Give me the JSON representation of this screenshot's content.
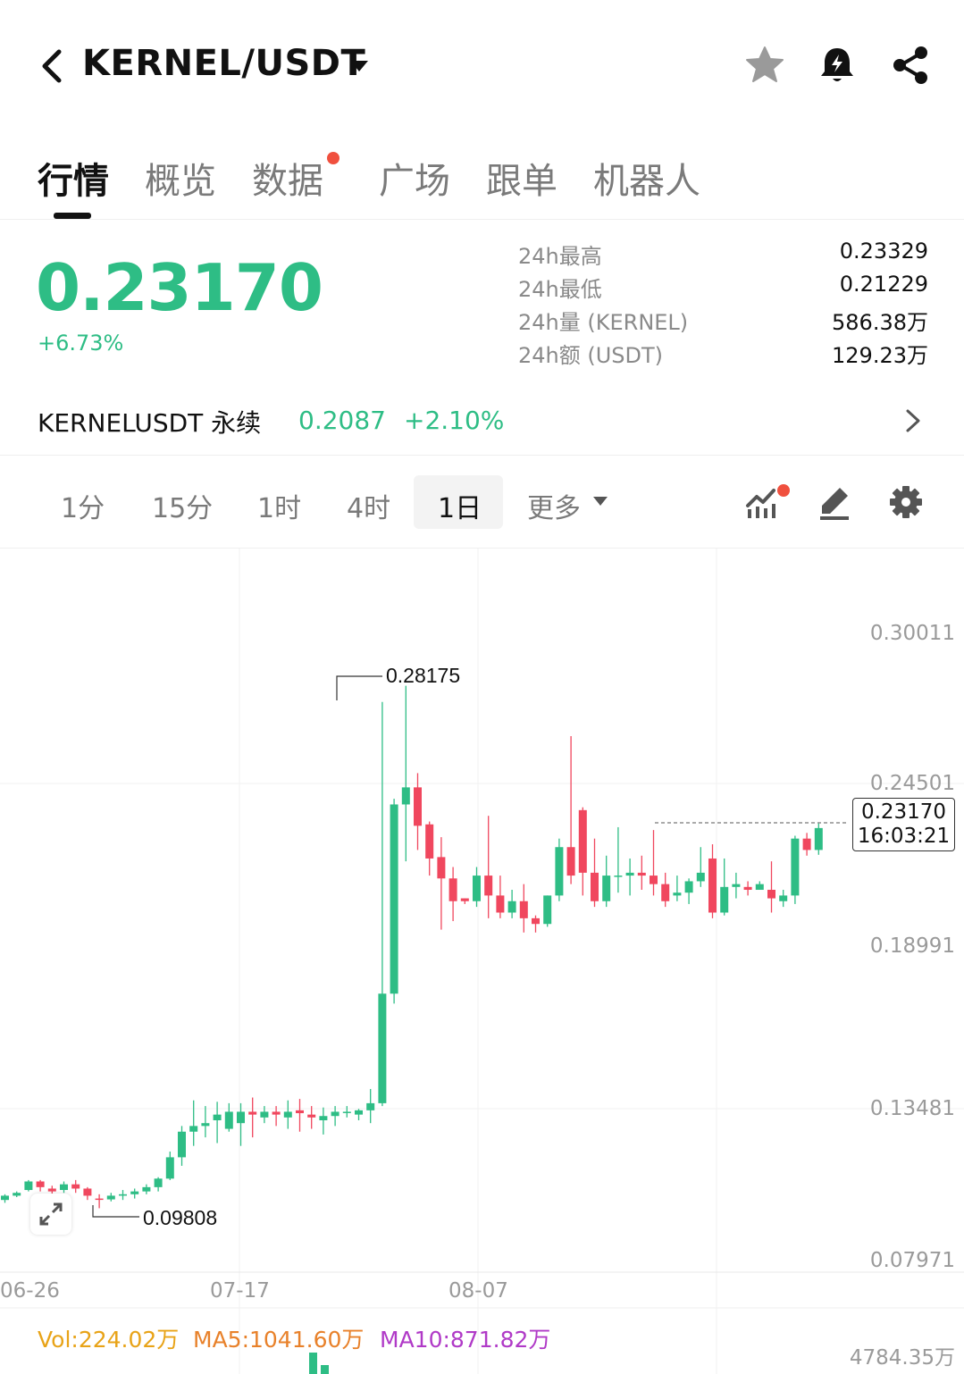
{
  "header": {
    "title": "KERNEL/USDT",
    "icons": [
      "back-arrow-icon",
      "caret-down-icon",
      "star-icon",
      "alert-bell-icon",
      "share-icon"
    ]
  },
  "tabs": [
    {
      "label": "行情",
      "active": true
    },
    {
      "label": "概览",
      "active": false
    },
    {
      "label": "数据",
      "active": false,
      "dot": true
    },
    {
      "label": "广场",
      "active": false
    },
    {
      "label": "跟单",
      "active": false
    },
    {
      "label": "机器人",
      "active": false
    }
  ],
  "ticker": {
    "last_price": "0.23170",
    "change_pct": "+6.73%",
    "stats": [
      {
        "label": "24h最高",
        "value": "0.23329"
      },
      {
        "label": "24h最低",
        "value": "0.21229"
      },
      {
        "label": "24h量 (KERNEL)",
        "value": "586.38万"
      },
      {
        "label": "24h额 (USDT)",
        "value": "129.23万"
      }
    ]
  },
  "perpetual": {
    "name": "KERNELUSDT 永续",
    "price": "0.2087",
    "change": "+2.10%"
  },
  "intervals": {
    "items": [
      "1分",
      "15分",
      "1时",
      "4时",
      "1日",
      "更多"
    ],
    "active": "1日",
    "tools": [
      "indicators-icon",
      "draw-icon",
      "settings-icon"
    ]
  },
  "colors": {
    "up": "#2ebd85",
    "down": "#f0475e",
    "accent_dot": "#f0503e"
  },
  "chart_data": {
    "type": "candlestick",
    "interval": "1日",
    "y_ticks": [
      "0.30011",
      "0.24501",
      "0.18991",
      "0.13481",
      "0.07971"
    ],
    "x_ticks": [
      "06-26",
      "07-17",
      "08-07"
    ],
    "max_label": "0.28175",
    "min_label": "0.09808",
    "current_price": "0.23170",
    "current_time": "16:03:21",
    "volume": {
      "vol": "Vol:224.02万",
      "ma5": "MA5:1041.60万",
      "ma10": "MA10:871.82万",
      "max": "4784.35万"
    },
    "candles": [
      [
        0.101,
        0.1025,
        0.1,
        0.103
      ],
      [
        0.1025,
        0.1035,
        0.102,
        0.104
      ],
      [
        0.1045,
        0.1075,
        0.104,
        0.108
      ],
      [
        0.1075,
        0.1055,
        0.104,
        0.108
      ],
      [
        0.105,
        0.104,
        0.103,
        0.106
      ],
      [
        0.1045,
        0.1065,
        0.1035,
        0.1075
      ],
      [
        0.1065,
        0.105,
        0.1035,
        0.108
      ],
      [
        0.105,
        0.1025,
        0.101,
        0.1055
      ],
      [
        0.1015,
        0.1012,
        0.0981,
        0.103
      ],
      [
        0.1012,
        0.1025,
        0.1005,
        0.1035
      ],
      [
        0.1025,
        0.103,
        0.101,
        0.1045
      ],
      [
        0.103,
        0.104,
        0.1015,
        0.105
      ],
      [
        0.104,
        0.1055,
        0.103,
        0.1065
      ],
      [
        0.1055,
        0.1085,
        0.104,
        0.109
      ],
      [
        0.1085,
        0.116,
        0.108,
        0.118
      ],
      [
        0.116,
        0.125,
        0.113,
        0.127
      ],
      [
        0.125,
        0.127,
        0.12,
        0.136
      ],
      [
        0.127,
        0.128,
        0.123,
        0.134
      ],
      [
        0.129,
        0.131,
        0.121,
        0.1355
      ],
      [
        0.126,
        0.132,
        0.125,
        0.135
      ],
      [
        0.128,
        0.132,
        0.12,
        0.135
      ],
      [
        0.132,
        0.131,
        0.123,
        0.137
      ],
      [
        0.13,
        0.132,
        0.128,
        0.134
      ],
      [
        0.132,
        0.131,
        0.127,
        0.134
      ],
      [
        0.13,
        0.132,
        0.126,
        0.136
      ],
      [
        0.1325,
        0.1315,
        0.125,
        0.1365
      ],
      [
        0.131,
        0.13,
        0.126,
        0.134
      ],
      [
        0.129,
        0.1305,
        0.124,
        0.1335
      ],
      [
        0.1305,
        0.132,
        0.127,
        0.134
      ],
      [
        0.132,
        0.132,
        0.13,
        0.134
      ],
      [
        0.131,
        0.1325,
        0.129,
        0.133
      ],
      [
        0.1325,
        0.135,
        0.128,
        0.14
      ],
      [
        0.135,
        0.1735,
        0.134,
        0.276
      ],
      [
        0.1735,
        0.24,
        0.17,
        0.242
      ],
      [
        0.24,
        0.246,
        0.22,
        0.2817
      ],
      [
        0.246,
        0.2325,
        0.224,
        0.251
      ],
      [
        0.233,
        0.221,
        0.215,
        0.234
      ],
      [
        0.2215,
        0.214,
        0.196,
        0.2285
      ],
      [
        0.214,
        0.206,
        0.199,
        0.218
      ],
      [
        0.207,
        0.206,
        0.205,
        0.207
      ],
      [
        0.206,
        0.215,
        0.204,
        0.218
      ],
      [
        0.215,
        0.208,
        0.2,
        0.236
      ],
      [
        0.208,
        0.202,
        0.2,
        0.215
      ],
      [
        0.202,
        0.206,
        0.2,
        0.21
      ],
      [
        0.206,
        0.2,
        0.195,
        0.212
      ],
      [
        0.2,
        0.198,
        0.195,
        0.201
      ],
      [
        0.198,
        0.208,
        0.197,
        0.208
      ],
      [
        0.208,
        0.225,
        0.206,
        0.228
      ],
      [
        0.225,
        0.215,
        0.212,
        0.264
      ],
      [
        0.238,
        0.216,
        0.208,
        0.239
      ],
      [
        0.216,
        0.206,
        0.204,
        0.228
      ],
      [
        0.206,
        0.215,
        0.204,
        0.222
      ],
      [
        0.215,
        0.215,
        0.209,
        0.232
      ],
      [
        0.215,
        0.216,
        0.208,
        0.221
      ],
      [
        0.216,
        0.215,
        0.21,
        0.222
      ],
      [
        0.215,
        0.212,
        0.208,
        0.231
      ],
      [
        0.212,
        0.206,
        0.204,
        0.216
      ],
      [
        0.208,
        0.209,
        0.206,
        0.215
      ],
      [
        0.209,
        0.213,
        0.205,
        0.214
      ],
      [
        0.213,
        0.216,
        0.211,
        0.225
      ],
      [
        0.221,
        0.202,
        0.2,
        0.226
      ],
      [
        0.202,
        0.211,
        0.201,
        0.221
      ],
      [
        0.211,
        0.212,
        0.207,
        0.216
      ],
      [
        0.211,
        0.21,
        0.208,
        0.213
      ],
      [
        0.21,
        0.212,
        0.21,
        0.213
      ],
      [
        0.21,
        0.207,
        0.202,
        0.22
      ],
      [
        0.206,
        0.208,
        0.204,
        0.21
      ],
      [
        0.208,
        0.228,
        0.205,
        0.229
      ],
      [
        0.228,
        0.224,
        0.222,
        0.23
      ],
      [
        0.224,
        0.2317,
        0.2223,
        0.2333
      ]
    ]
  }
}
